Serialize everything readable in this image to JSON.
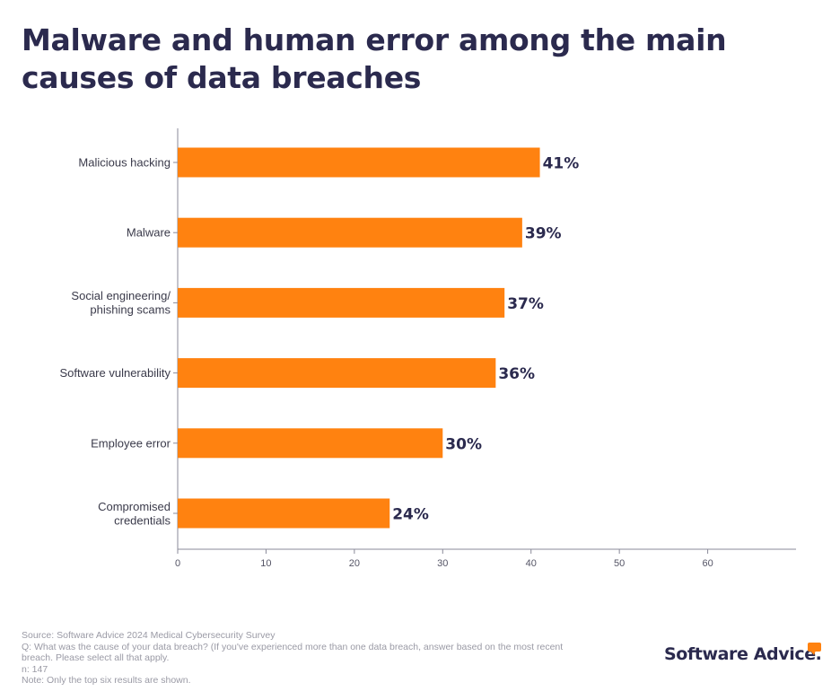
{
  "colors": {
    "bar": "#ff8210",
    "title": "#2b2a4e",
    "label": "#3a3a4a",
    "axis": "#8a8a99",
    "footer": "#9a9aa5"
  },
  "chart_data": {
    "type": "bar",
    "orientation": "horizontal",
    "title_lines": [
      "Malware and human error among the main",
      "causes of data breaches"
    ],
    "categories": [
      [
        "Malicious hacking"
      ],
      [
        "Malware"
      ],
      [
        "Social engineering/",
        "phishing scams"
      ],
      [
        "Software vulnerability"
      ],
      [
        "Employee error"
      ],
      [
        "Compromised",
        "credentials"
      ]
    ],
    "values": [
      41,
      39,
      37,
      36,
      30,
      24
    ],
    "value_labels": [
      "41%",
      "39%",
      "37%",
      "36%",
      "30%",
      "24%"
    ],
    "xlim": [
      0,
      70
    ],
    "xticks": [
      0,
      10,
      20,
      30,
      40,
      50,
      60
    ],
    "xlabel": "",
    "ylabel": "",
    "grid": false,
    "legend": "none"
  },
  "footer": {
    "source": "Source: Software Advice 2024 Medical Cybersecurity Survey",
    "question_line1": "Q: What was the cause of your data breach? (If you've experienced more than one data breach, answer based on the most recent",
    "question_line2": "breach. Please select all that apply.",
    "n": "n: 147",
    "note": "Note: Only the top six results are shown."
  },
  "logo": {
    "text": "Software Advice."
  }
}
